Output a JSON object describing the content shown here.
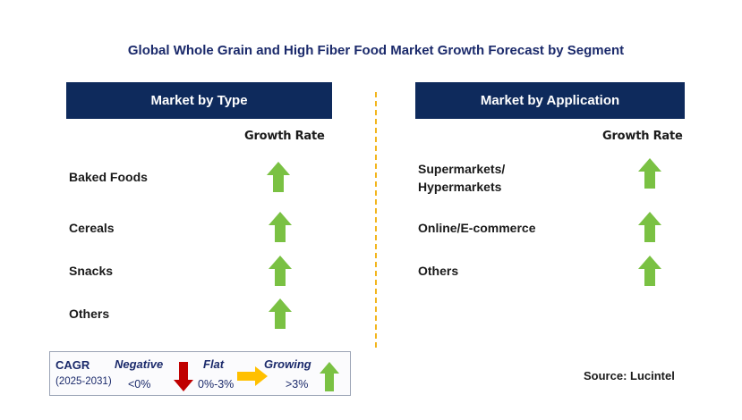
{
  "title": "Global Whole Grain and High Fiber Food Market Growth Forecast by Segment",
  "type_panel": {
    "header": "Market by Type",
    "growth_rate_label": "Growth Rate",
    "rows": [
      {
        "label": "Baked Foods",
        "trend": "growing"
      },
      {
        "label": "Cereals",
        "trend": "growing"
      },
      {
        "label": "Snacks",
        "trend": "growing"
      },
      {
        "label": "Others",
        "trend": "growing"
      }
    ]
  },
  "application_panel": {
    "header": "Market by Application",
    "growth_rate_label": "Growth Rate",
    "rows": [
      {
        "label": "Supermarkets/\nHypermarkets",
        "trend": "growing"
      },
      {
        "label": "Online/E-commerce",
        "trend": "growing"
      },
      {
        "label": "Others",
        "trend": "growing"
      }
    ]
  },
  "legend": {
    "cagr_label": "CAGR",
    "period": "(2025-2031)",
    "negative": {
      "label": "Negative",
      "value": "<0%",
      "icon": "down-arrow-icon",
      "color": "#c00000"
    },
    "flat": {
      "label": "Flat",
      "value": "0%-3%",
      "icon": "right-arrow-icon",
      "color": "#ffc000"
    },
    "growing": {
      "label": "Growing",
      "value": ">3%",
      "icon": "up-arrow-icon",
      "color": "#7ac143"
    }
  },
  "source": "Source: Lucintel",
  "colors": {
    "header_bg": "#0e2a5c",
    "title": "#1b2a6b",
    "divider": "#f2b51c",
    "growing": "#7ac143"
  }
}
